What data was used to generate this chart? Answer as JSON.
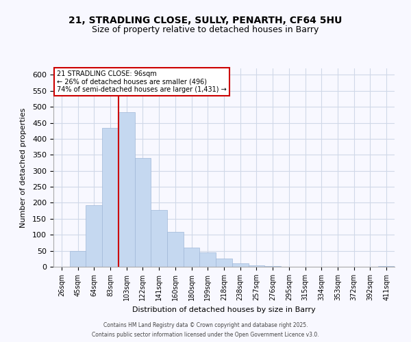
{
  "title1": "21, STRADLING CLOSE, SULLY, PENARTH, CF64 5HU",
  "title2": "Size of property relative to detached houses in Barry",
  "xlabel": "Distribution of detached houses by size in Barry",
  "ylabel": "Number of detached properties",
  "categories": [
    "26sqm",
    "45sqm",
    "64sqm",
    "83sqm",
    "103sqm",
    "122sqm",
    "141sqm",
    "160sqm",
    "180sqm",
    "199sqm",
    "218sqm",
    "238sqm",
    "257sqm",
    "276sqm",
    "295sqm",
    "315sqm",
    "334sqm",
    "353sqm",
    "372sqm",
    "392sqm",
    "411sqm"
  ],
  "values": [
    0,
    50,
    192,
    433,
    483,
    340,
    178,
    110,
    60,
    44,
    25,
    10,
    5,
    2,
    1,
    1,
    0,
    0,
    0,
    0,
    2
  ],
  "bar_color": "#c5d8f0",
  "bar_edge_color": "#a0b8d8",
  "vline_x_index": 4,
  "vline_color": "#cc0000",
  "annotation_title": "21 STRADLING CLOSE: 96sqm",
  "annotation_line1": "← 26% of detached houses are smaller (496)",
  "annotation_line2": "74% of semi-detached houses are larger (1,431) →",
  "annotation_box_color": "#ffffff",
  "annotation_box_edge": "#cc0000",
  "ylim": [
    0,
    620
  ],
  "yticks": [
    0,
    50,
    100,
    150,
    200,
    250,
    300,
    350,
    400,
    450,
    500,
    550,
    600
  ],
  "footer1": "Contains HM Land Registry data © Crown copyright and database right 2025.",
  "footer2": "Contains public sector information licensed under the Open Government Licence v3.0.",
  "bg_color": "#f8f8ff",
  "grid_color": "#d0d8e8"
}
